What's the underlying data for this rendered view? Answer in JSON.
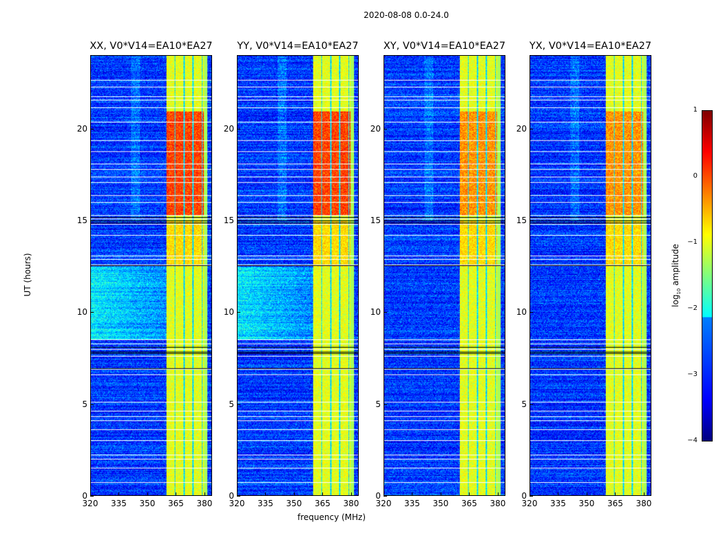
{
  "chart_data": {
    "type": "heatmap",
    "title": "2020-08-08 0.0-24.0",
    "xlabel": "frequency (MHz)",
    "ylabel": "UT (hours)",
    "xlim": [
      320,
      384
    ],
    "ylim": [
      0,
      24
    ],
    "xticks": [
      320,
      335,
      350,
      365,
      380
    ],
    "yticks": [
      0,
      5,
      10,
      15,
      20
    ],
    "panels": [
      {
        "title": "XX, V0*V14=EA10*EA27",
        "pol": "XX"
      },
      {
        "title": "YY, V0*V14=EA10*EA27",
        "pol": "YY"
      },
      {
        "title": "XY, V0*V14=EA10*EA27",
        "pol": "XY"
      },
      {
        "title": "YX, V0*V14=EA10*EA27",
        "pol": "YX"
      }
    ],
    "colorbar": {
      "label": "log10 amplitude",
      "label_main": "log",
      "label_sub": "10",
      "label_rest": " amplitude",
      "range": [
        -4,
        1
      ],
      "ticks": [
        "1",
        "0",
        "−1",
        "−2",
        "−3",
        "−4"
      ],
      "tick_values": [
        1,
        0,
        -1,
        -2,
        -3,
        -4
      ],
      "colormap": "jet"
    },
    "rfi_band_mhz": [
      360,
      380
    ],
    "flagged_hours": [
      0.7,
      1.5,
      2.0,
      2.2,
      3.0,
      3.6,
      4.1,
      4.3,
      4.6,
      5.1,
      6.6,
      6.9,
      7.6,
      8.0,
      8.3,
      8.5,
      12.6,
      12.9,
      13.1,
      14.2,
      14.8,
      15.1,
      15.3,
      16.0,
      16.4,
      17.1,
      17.4,
      17.8,
      18.1,
      18.8,
      19.4,
      20.4,
      21.2,
      21.6,
      21.8,
      22.3,
      22.7
    ]
  }
}
